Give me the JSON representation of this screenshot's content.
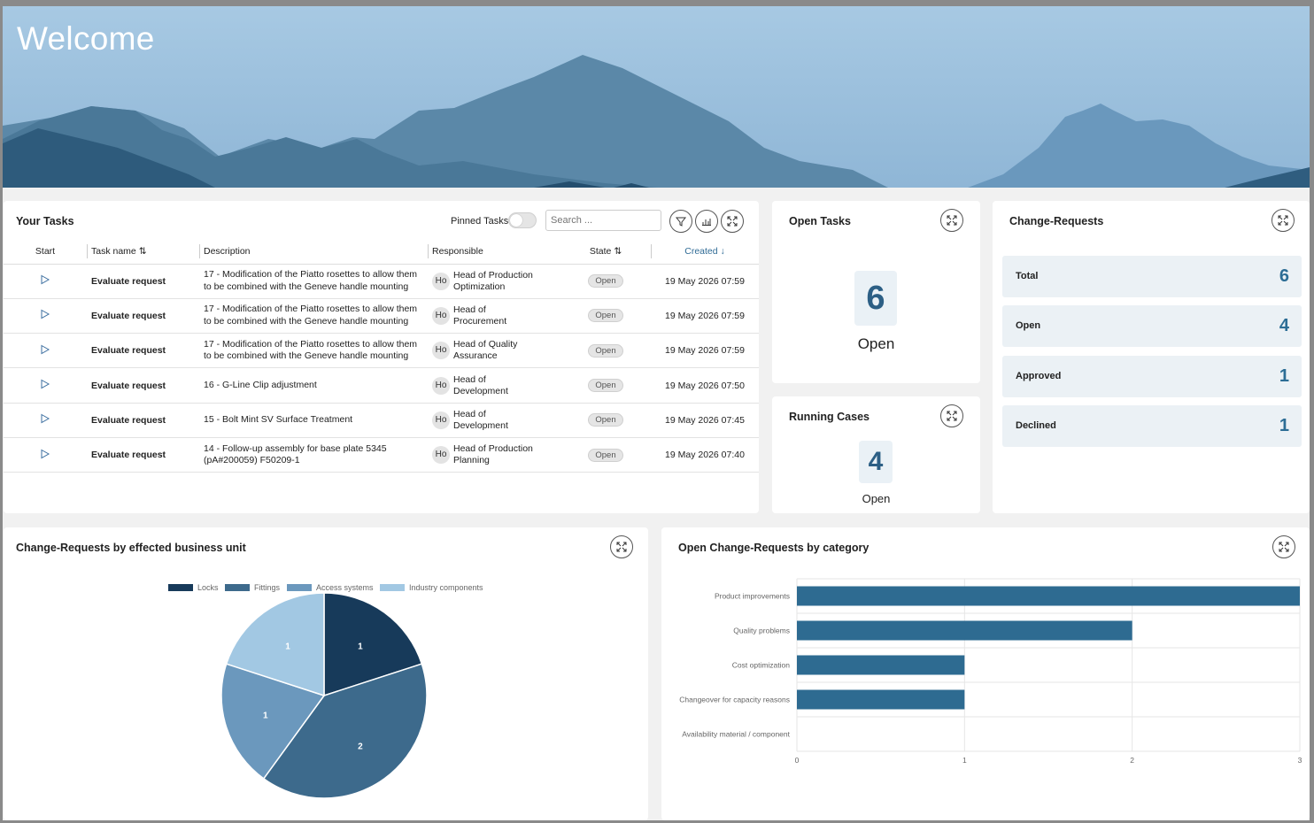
{
  "header": {
    "title": "Welcome"
  },
  "tasks": {
    "title": "Your Tasks",
    "pinned_label": "Pinned Tasks",
    "search_placeholder": "Search ...",
    "columns": {
      "start": "Start",
      "task_name": "Task name",
      "description": "Description",
      "responsible": "Responsible",
      "state": "State",
      "created": "Created"
    },
    "rows": [
      {
        "name": "Evaluate request",
        "desc1": "17 - Modification of the Piatto rosettes to allow them",
        "desc2": "to be combined with the Geneve handle mounting",
        "avatar": "Ho",
        "resp1": "Head of Production",
        "resp2": "Optimization",
        "state": "Open",
        "created": "19 May 2026 07:59"
      },
      {
        "name": "Evaluate request",
        "desc1": "17 - Modification of the Piatto rosettes to allow them",
        "desc2": "to be combined with the Geneve handle mounting",
        "avatar": "Ho",
        "resp1": "Head of",
        "resp2": "Procurement",
        "state": "Open",
        "created": "19 May 2026 07:59"
      },
      {
        "name": "Evaluate request",
        "desc1": "17 - Modification of the Piatto rosettes to allow them",
        "desc2": "to be combined with the Geneve handle mounting",
        "avatar": "Ho",
        "resp1": "Head of Quality",
        "resp2": "Assurance",
        "state": "Open",
        "created": "19 May 2026 07:59"
      },
      {
        "name": "Evaluate request",
        "desc1": "16 - G-Line Clip adjustment",
        "desc2": "",
        "avatar": "Ho",
        "resp1": "Head of",
        "resp2": "Development",
        "state": "Open",
        "created": "19 May 2026 07:50"
      },
      {
        "name": "Evaluate request",
        "desc1": "15 - Bolt Mint SV Surface Treatment",
        "desc2": "",
        "avatar": "Ho",
        "resp1": "Head of",
        "resp2": "Development",
        "state": "Open",
        "created": "19 May 2026 07:45"
      },
      {
        "name": "Evaluate request",
        "desc1": "14 - Follow-up assembly for base plate 5345",
        "desc2": "(pA#200059) F50209-1",
        "avatar": "Ho",
        "resp1": "Head of Production",
        "resp2": "Planning",
        "state": "Open",
        "created": "19 May 2026 07:40"
      }
    ]
  },
  "open_tasks": {
    "title": "Open Tasks",
    "value": "6",
    "label": "Open"
  },
  "running_cases": {
    "title": "Running Cases",
    "value": "4",
    "label": "Open"
  },
  "change_requests": {
    "title": "Change-Requests",
    "rows": [
      {
        "label": "Total",
        "value": "6"
      },
      {
        "label": "Open",
        "value": "4"
      },
      {
        "label": "Approved",
        "value": "1"
      },
      {
        "label": "Declined",
        "value": "1"
      }
    ]
  },
  "pie_card": {
    "title": "Change-Requests by effected business unit"
  },
  "bar_card": {
    "title": "Open Change-Requests by category"
  },
  "chart_data": [
    {
      "type": "pie",
      "title": "Change-Requests by effected business unit",
      "categories": [
        "Locks",
        "Fittings",
        "Access systems",
        "Industry components"
      ],
      "values": [
        1,
        2,
        1,
        1
      ],
      "colors": [
        "#173a5a",
        "#3d6a8c",
        "#6b98bd",
        "#a2c8e3"
      ],
      "legend": "top"
    },
    {
      "type": "bar",
      "orientation": "horizontal",
      "title": "Open Change-Requests by category",
      "categories": [
        "Product improvements",
        "Quality problems",
        "Cost optimization",
        "Changeover for capacity reasons",
        "Availability material / component"
      ],
      "values": [
        3,
        2,
        1,
        1,
        0
      ],
      "xlim": [
        0,
        3
      ],
      "xticks": [
        "0",
        "1",
        "2",
        "3"
      ],
      "color": "#2e6b91",
      "grid": true
    }
  ]
}
